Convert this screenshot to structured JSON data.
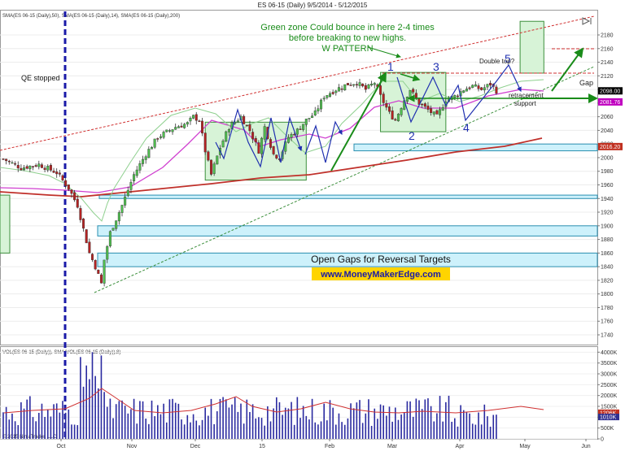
{
  "chart_data": {
    "type": "candlestick",
    "title": "ES 06-15 (Daily)  9/5/2014 - 5/12/2015",
    "indicator_legend": "SMA(ES 06-15 (Daily),50), SMA(ES 06-15 (Daily),14), SMA(ES 06-15 (Daily),200)",
    "volume_legend": "VOL(ES 06-15 (Daily)), SMA(VOL(ES 06-15 (Daily)),8)",
    "copyright": "© 2015 NinjaTrader, LLC",
    "x_labels": [
      "Oct",
      "Nov",
      "Dec",
      "15",
      "Feb",
      "Mar",
      "Apr",
      "May",
      "Jun"
    ],
    "y_range": [
      1730,
      2200
    ],
    "y_ticks": [
      1740,
      1760,
      1780,
      1800,
      1820,
      1840,
      1860,
      1880,
      1900,
      1920,
      1940,
      1960,
      1980,
      2000,
      2020,
      2040,
      2060,
      2080,
      2100,
      2120,
      2140,
      2160,
      2180
    ],
    "price_tags": [
      {
        "text": "2098.00",
        "value": 2098.0,
        "color": "#000000"
      },
      {
        "text": "2081.76",
        "value": 2081.76,
        "color": "#c000c0"
      },
      {
        "text": "2016.20",
        "value": 2016.2,
        "color": "#c03020"
      }
    ],
    "volume_range": [
      0,
      4200000
    ],
    "volume_ticks_text": [
      "4000K",
      "3500K",
      "3000K",
      "2500K",
      "2000K",
      "1500K",
      "1000K",
      "500K",
      "0"
    ],
    "volume_ticks_values": [
      4000000,
      3500000,
      3000000,
      2500000,
      2000000,
      1500000,
      1000000,
      500000,
      0
    ],
    "volume_tags": [
      {
        "text": "1206K",
        "value": 1206000,
        "color": "#c03020"
      },
      {
        "text": "1010K",
        "value": 1010000,
        "color": "#303090"
      }
    ],
    "gap_zones": [
      [
        2010,
        2020
      ],
      [
        1940,
        1945
      ],
      [
        1885,
        1900
      ],
      [
        1840,
        1860
      ]
    ],
    "green_zones": [
      {
        "x0": 68,
        "x1": 102,
        "y0": 1967,
        "y1": 2052
      },
      {
        "x0": 127,
        "x1": 149,
        "y0": 2038,
        "y1": 2125
      },
      {
        "x0": 174,
        "x1": 182,
        "y0": 2124,
        "y1": 2200
      }
    ],
    "annotations": {
      "qe": "QE stopped",
      "green_zone_line1": "Green zone Could bounce in here 2-4 times",
      "green_zone_line2": "before breaking to new highs.",
      "green_zone_line3": "W PATTERN",
      "double_top": "Double top?",
      "retracement_line1": "retracement",
      "retracement_line2": "support",
      "gap": "Gap",
      "open_gaps": "Open Gaps for Reversal Targets",
      "website": "www.MoneyMakerEdge.com",
      "w_points": [
        "1",
        "2",
        "3",
        "4",
        "5"
      ]
    }
  }
}
